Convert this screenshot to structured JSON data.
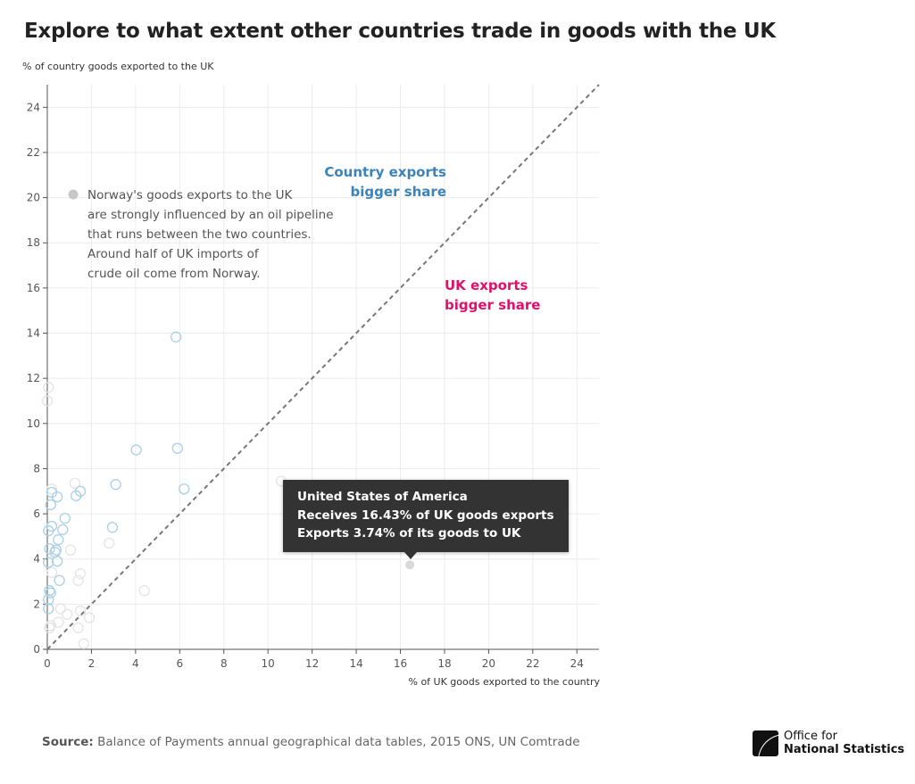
{
  "title": "Explore to what extent other countries trade in goods with the UK",
  "annotation": {
    "lines": [
      "Norway's goods exports to the UK",
      "are strongly influenced by an oil pipeline",
      "that runs between the two countries.",
      "Around half of UK imports of",
      "crude oil come from Norway."
    ]
  },
  "regions": {
    "country_lines": [
      "Country exports",
      "bigger share"
    ],
    "uk_lines": [
      "UK exports",
      "bigger share"
    ],
    "country_color": "#3b83b8",
    "uk_color": "#e0116a"
  },
  "tooltip": {
    "lines": [
      "United States of America",
      "Receives 16.43% of UK goods exports",
      "Exports 3.74% of its goods to UK"
    ]
  },
  "source": {
    "label": "Source:",
    "text": " Balance of Payments annual geographical data tables, 2015 ONS, UN Comtrade"
  },
  "logo": {
    "line1": "Office for",
    "line2": "National Statistics"
  },
  "chart_data": {
    "type": "scatter",
    "xlabel": "% of UK goods exported to the country",
    "ylabel": "% of country goods exported to the UK",
    "xlim": [
      0,
      25
    ],
    "ylim": [
      0,
      25
    ],
    "xticks": [
      0,
      2,
      4,
      6,
      8,
      10,
      12,
      14,
      16,
      18,
      20,
      22,
      24
    ],
    "yticks": [
      0,
      2,
      4,
      6,
      8,
      10,
      12,
      14,
      16,
      18,
      20,
      22,
      24
    ],
    "grid": true,
    "reference_line": "y = x",
    "highlighted": {
      "name": "United States of America",
      "x": 16.43,
      "y": 3.74
    },
    "points": [
      [
        5.83,
        13.83
      ],
      [
        4.03,
        8.83
      ],
      [
        5.9,
        8.9
      ],
      [
        6.2,
        7.1
      ],
      [
        3.1,
        7.3
      ],
      [
        1.5,
        7.0
      ],
      [
        1.3,
        6.8
      ],
      [
        0.2,
        6.95
      ],
      [
        0.45,
        6.75
      ],
      [
        0.15,
        6.4
      ],
      [
        0.8,
        5.8
      ],
      [
        2.95,
        5.4
      ],
      [
        0.2,
        5.45
      ],
      [
        0.05,
        5.25
      ],
      [
        0.7,
        5.3
      ],
      [
        0.5,
        4.85
      ],
      [
        0.1,
        4.45
      ],
      [
        0.35,
        4.3
      ],
      [
        0.4,
        4.4
      ],
      [
        0.45,
        3.9
      ],
      [
        0.05,
        3.85
      ],
      [
        0.55,
        3.05
      ],
      [
        0.1,
        2.6
      ],
      [
        0.15,
        2.5
      ],
      [
        0.05,
        2.2
      ],
      [
        0.05,
        1.8
      ]
    ],
    "faded_points": [
      [
        0.05,
        11.6
      ],
      [
        0.0,
        11.0
      ],
      [
        10.6,
        7.45
      ],
      [
        1.25,
        7.35
      ],
      [
        0.2,
        7.1
      ],
      [
        2.8,
        4.7
      ],
      [
        1.05,
        4.4
      ],
      [
        1.5,
        3.35
      ],
      [
        1.4,
        3.05
      ],
      [
        4.4,
        2.6
      ],
      [
        0.9,
        1.55
      ],
      [
        1.5,
        1.7
      ],
      [
        1.9,
        1.4
      ],
      [
        0.5,
        1.2
      ],
      [
        0.15,
        1.05
      ],
      [
        0.1,
        0.95
      ],
      [
        1.4,
        0.95
      ],
      [
        1.65,
        0.25
      ],
      [
        0.2,
        3.4
      ],
      [
        0.6,
        1.8
      ]
    ],
    "point_color": "#a9cfe6",
    "highlight_color": "#d9d9d9"
  }
}
